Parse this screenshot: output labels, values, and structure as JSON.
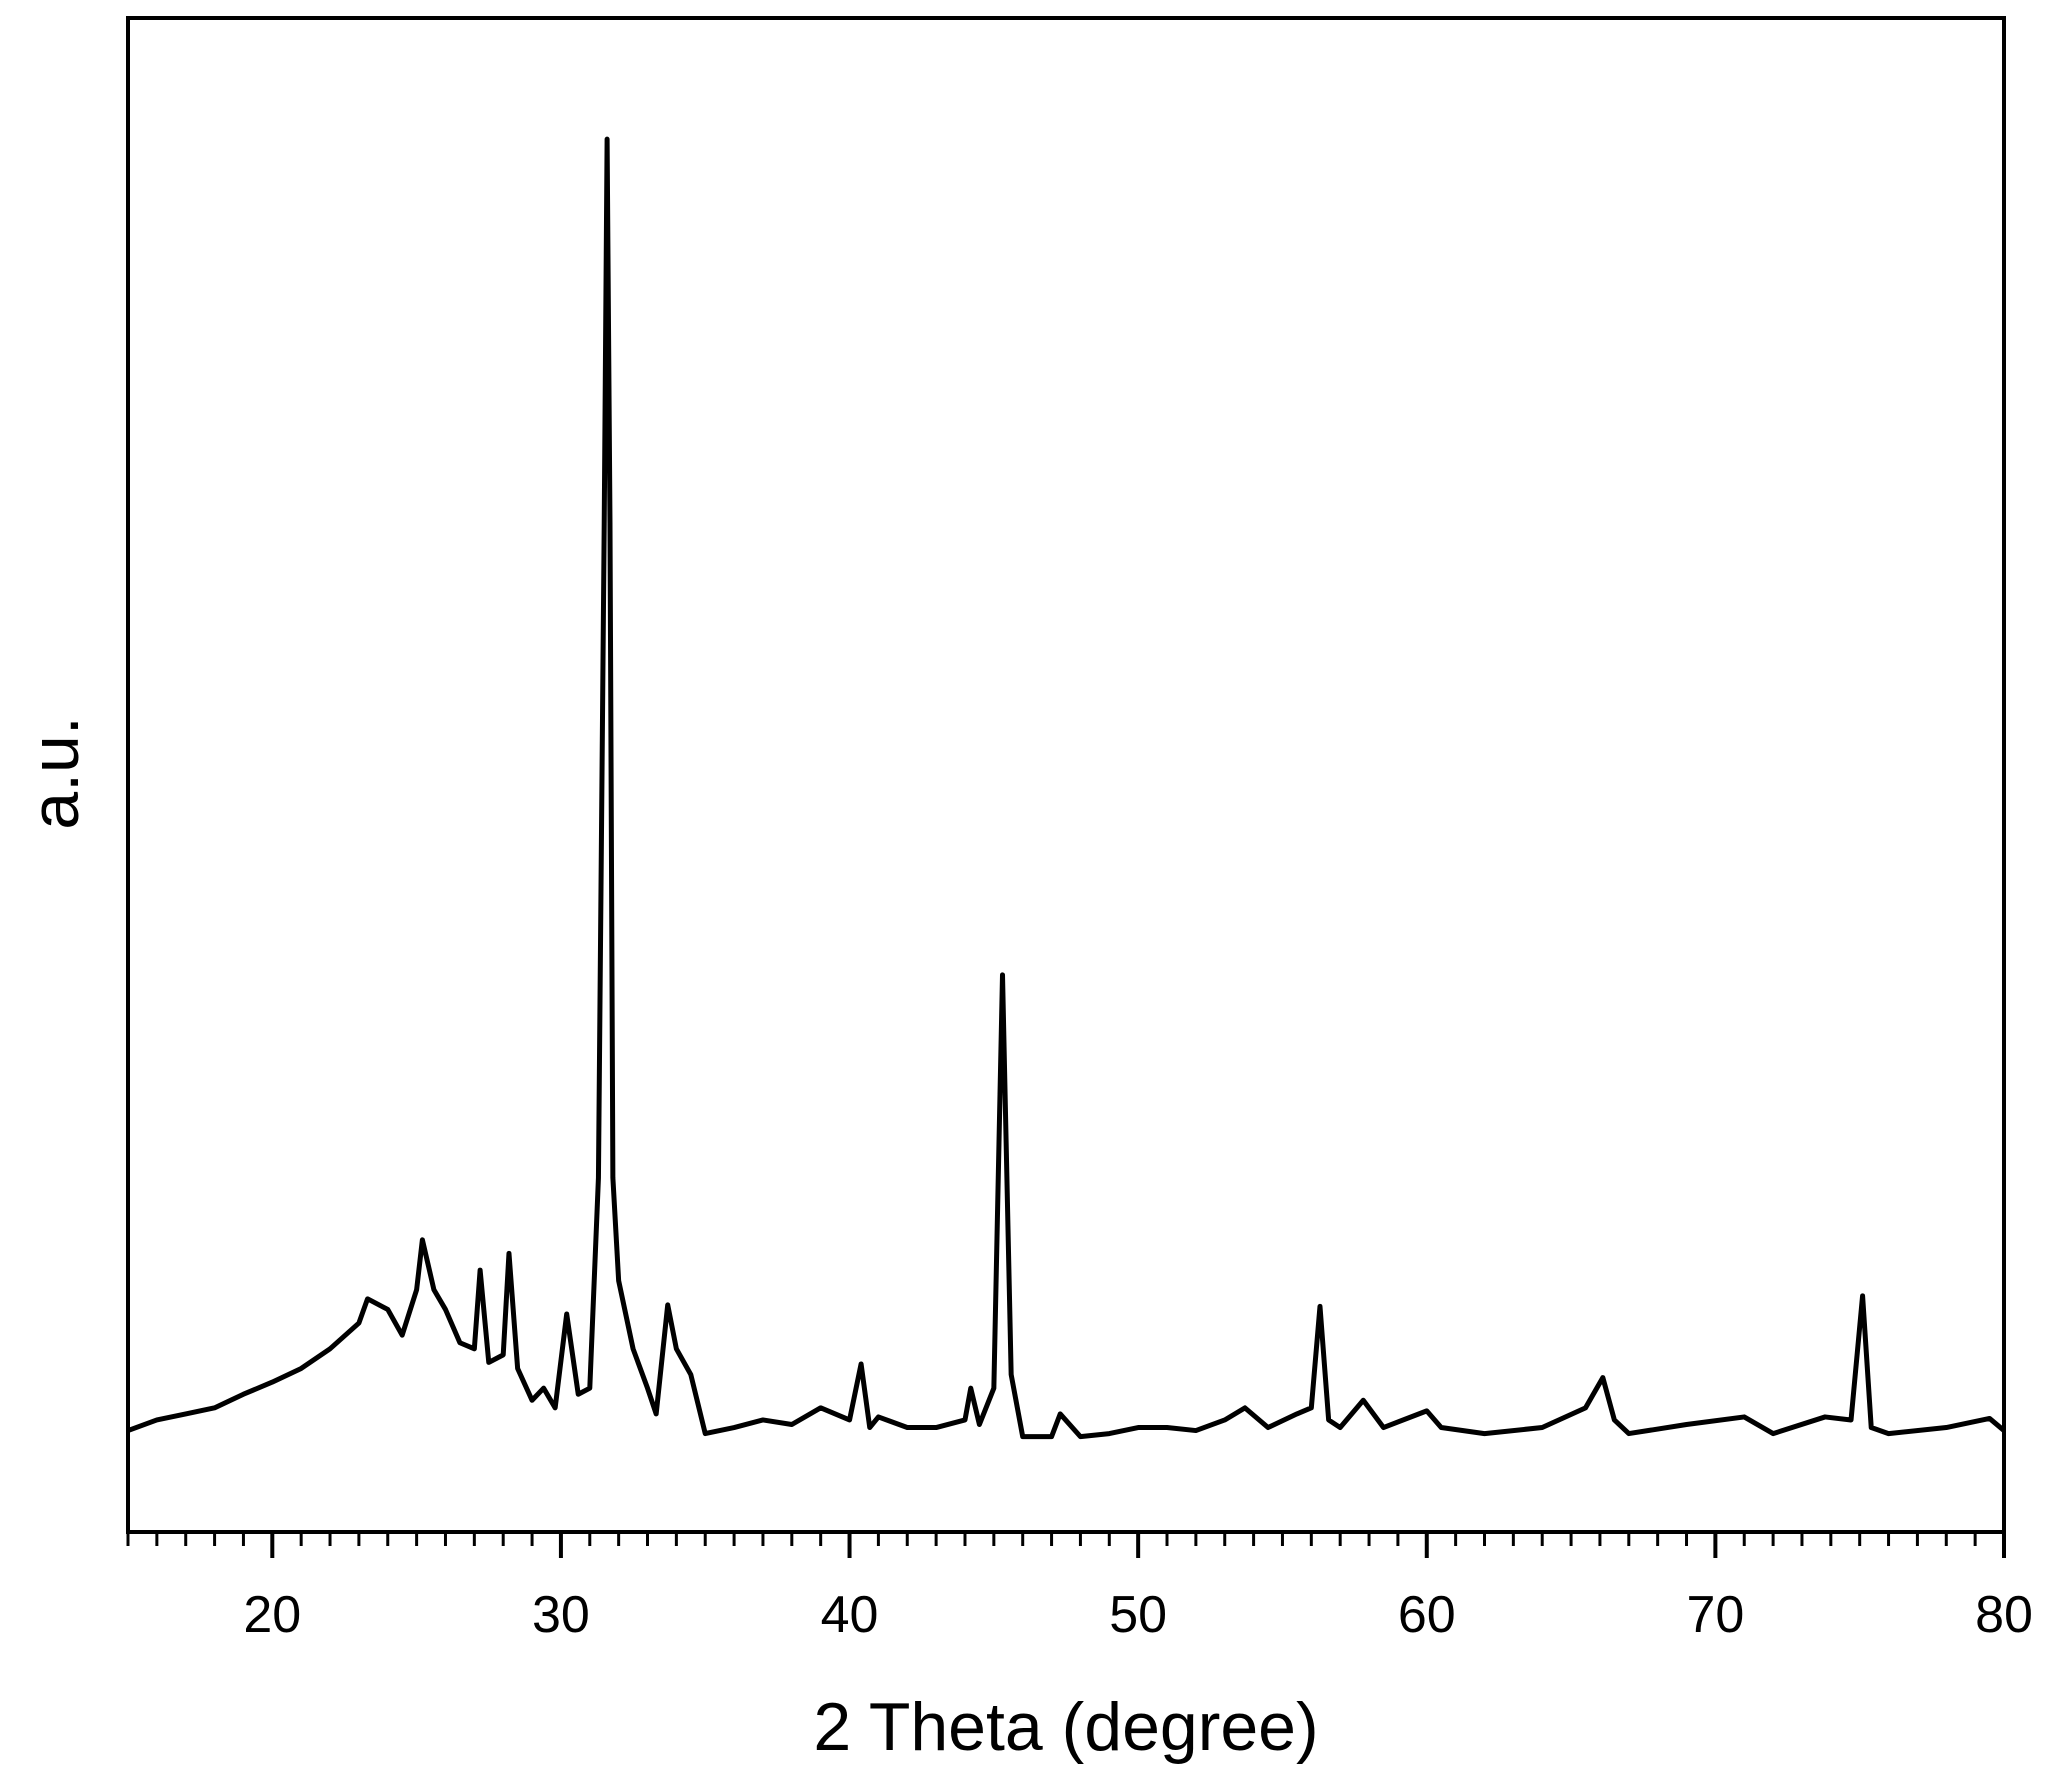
{
  "chart_data": {
    "type": "line",
    "xlabel": "2 Theta (degree)",
    "ylabel": "a.u.",
    "xlim": [
      15,
      80
    ],
    "xticks": [
      20,
      30,
      40,
      50,
      60,
      70,
      80
    ],
    "xminorstep": 1,
    "ylim": [
      0,
      100
    ],
    "series": [
      {
        "color": "#000000",
        "x": [
          15,
          16,
          17,
          18,
          19,
          20,
          21,
          22,
          23,
          23.3,
          24,
          24.5,
          25,
          25.2,
          25.6,
          26,
          26.5,
          27,
          27.2,
          27.5,
          28,
          28.2,
          28.5,
          29,
          29.4,
          29.8,
          30.2,
          30.6,
          31,
          31.3,
          31.5,
          31.6,
          31.7,
          31.8,
          32,
          32.5,
          33,
          33.3,
          33.7,
          34,
          34.5,
          35,
          36,
          37,
          38,
          39,
          40,
          40.4,
          40.7,
          41,
          42,
          43,
          44,
          44.2,
          44.5,
          45,
          45.3,
          45.6,
          46,
          47,
          47.3,
          48,
          49,
          50,
          51,
          52,
          53,
          53.7,
          54.5,
          55.5,
          56,
          56.3,
          56.6,
          57,
          57.8,
          58.5,
          60,
          60.5,
          62,
          64,
          65.5,
          66.1,
          66.5,
          67,
          69,
          71,
          72,
          73.8,
          74.7,
          75.1,
          75.4,
          76,
          78,
          79.5,
          80
        ],
        "values": [
          6.7,
          7.4,
          7.8,
          8.2,
          9.1,
          9.9,
          10.8,
          12.1,
          13.8,
          15.4,
          14.7,
          13.0,
          16.0,
          19.3,
          16.0,
          14.7,
          12.5,
          12.1,
          17.3,
          11.2,
          11.7,
          18.4,
          10.8,
          8.7,
          9.5,
          8.2,
          14.4,
          9.1,
          9.5,
          23.4,
          66.6,
          92.0,
          66.6,
          23.4,
          16.6,
          12.1,
          9.5,
          7.8,
          15.0,
          12.1,
          10.4,
          6.5,
          6.9,
          7.4,
          7.1,
          8.2,
          7.4,
          11.1,
          6.9,
          7.6,
          6.9,
          6.9,
          7.4,
          9.5,
          7.1,
          9.5,
          36.8,
          10.4,
          6.3,
          6.3,
          7.8,
          6.3,
          6.5,
          6.9,
          6.9,
          6.7,
          7.4,
          8.2,
          6.9,
          7.8,
          8.2,
          14.9,
          7.4,
          6.9,
          8.7,
          6.9,
          8.0,
          6.9,
          6.5,
          6.9,
          8.2,
          10.2,
          7.4,
          6.5,
          7.1,
          7.6,
          6.5,
          7.6,
          7.4,
          15.6,
          6.9,
          6.5,
          6.9,
          7.5,
          6.7
        ]
      }
    ]
  }
}
